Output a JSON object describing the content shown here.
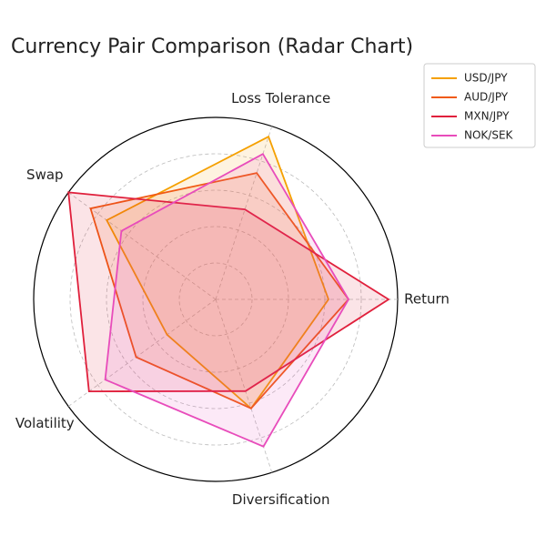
{
  "chart_data": {
    "type": "radar",
    "title": "Currency Pair Comparison (Radar Chart)",
    "categories": [
      "Return",
      "Loss Tolerance",
      "Swap",
      "Volatility",
      "Diversification"
    ],
    "ylim": [
      0,
      100
    ],
    "yticks": [
      20,
      40,
      60,
      80,
      100
    ],
    "grid": true,
    "legend": "upper right",
    "series": [
      {
        "name": "USD/JPY",
        "color": "#f5a000",
        "values": [
          62,
          94,
          74,
          33,
          63
        ]
      },
      {
        "name": "AUD/JPY",
        "color": "#f05a14",
        "values": [
          73,
          73,
          85,
          54,
          63
        ]
      },
      {
        "name": "MXN/JPY",
        "color": "#e0203c",
        "values": [
          95,
          52,
          100,
          86,
          53
        ]
      },
      {
        "name": "NOK/SEK",
        "color": "#e84cbb",
        "values": [
          73,
          84,
          64,
          75,
          85
        ]
      }
    ]
  }
}
